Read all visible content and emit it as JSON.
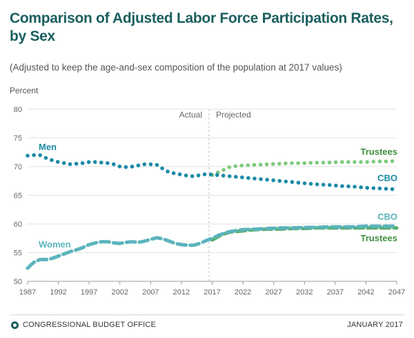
{
  "title": "Comparison of Adjusted Labor Force Participation Rates, by Sex",
  "subtitle": "(Adjusted to keep the age-and-sex composition of the population at 2017 values)",
  "footer": {
    "left": "CONGRESSIONAL BUDGET OFFICE",
    "right": "JANUARY 2017"
  },
  "colors": {
    "title": "#1b5e5e",
    "cbo_men": "#1a8aa6",
    "cbo_women": "#5bb4bd",
    "trustees_men": "#7fc97f",
    "trustees_women": "#5aaf68",
    "trustees_label": "#3f8f3f"
  },
  "chart_data": {
    "type": "line",
    "ylabel": "Percent",
    "ylim": [
      50,
      80
    ],
    "yticks": [
      50,
      55,
      60,
      65,
      70,
      75,
      80
    ],
    "xlim": [
      1987,
      2047
    ],
    "xticks": [
      1987,
      1992,
      1997,
      2002,
      2007,
      2012,
      2017,
      2022,
      2027,
      2032,
      2037,
      2042,
      2047
    ],
    "annotations": {
      "actual": "Actual",
      "projected": "Projected",
      "divider_year": 2016.5
    },
    "labels": {
      "men": "Men",
      "women": "Women",
      "cbo_men": "CBO",
      "trustees_men": "Trustees",
      "cbo_women": "CBO",
      "trustees_women": "Trustees"
    },
    "series": [
      {
        "name": "Men (CBO)",
        "style": "dotted",
        "color": "#1a8aa6",
        "x": [
          1987,
          1988,
          1989,
          1990,
          1991,
          1992,
          1993,
          1994,
          1995,
          1996,
          1997,
          1998,
          1999,
          2000,
          2001,
          2002,
          2003,
          2004,
          2005,
          2006,
          2007,
          2008,
          2009,
          2010,
          2011,
          2012,
          2013,
          2014,
          2015,
          2016,
          2017,
          2018,
          2019,
          2020,
          2022,
          2024,
          2026,
          2028,
          2030,
          2032,
          2034,
          2036,
          2038,
          2040,
          2042,
          2044,
          2046,
          2047
        ],
        "y": [
          71.9,
          72.0,
          72.0,
          71.5,
          71.1,
          70.8,
          70.6,
          70.4,
          70.5,
          70.6,
          70.8,
          70.8,
          70.7,
          70.6,
          70.4,
          70.0,
          69.9,
          70.0,
          70.2,
          70.4,
          70.4,
          70.3,
          69.6,
          69.0,
          68.8,
          68.6,
          68.4,
          68.3,
          68.5,
          68.7,
          68.6,
          68.5,
          68.4,
          68.3,
          68.1,
          67.9,
          67.7,
          67.5,
          67.3,
          67.1,
          66.9,
          66.8,
          66.6,
          66.5,
          66.3,
          66.2,
          66.1,
          66.0
        ]
      },
      {
        "name": "Men (Trustees)",
        "style": "dotted",
        "color": "#7fc97f",
        "x": [
          2017,
          2018,
          2019,
          2020,
          2022,
          2024,
          2026,
          2028,
          2030,
          2032,
          2034,
          2036,
          2038,
          2040,
          2042,
          2044,
          2046,
          2047
        ],
        "y": [
          68.5,
          69.0,
          69.5,
          70.0,
          70.2,
          70.3,
          70.4,
          70.5,
          70.6,
          70.6,
          70.7,
          70.7,
          70.8,
          70.8,
          70.8,
          70.9,
          70.9,
          71.0
        ]
      },
      {
        "name": "Women (CBO)",
        "style": "dashed",
        "color": "#5bb4bd",
        "x": [
          1987,
          1988,
          1989,
          1990,
          1991,
          1992,
          1993,
          1994,
          1995,
          1996,
          1997,
          1998,
          1999,
          2000,
          2001,
          2002,
          2003,
          2004,
          2005,
          2006,
          2007,
          2008,
          2009,
          2010,
          2011,
          2012,
          2013,
          2014,
          2015,
          2016,
          2017,
          2018,
          2019,
          2020,
          2022,
          2024,
          2026,
          2028,
          2030,
          2032,
          2034,
          2036,
          2038,
          2040,
          2042,
          2044,
          2046,
          2047
        ],
        "y": [
          52.3,
          53.3,
          53.8,
          53.8,
          54.0,
          54.4,
          54.8,
          55.2,
          55.5,
          55.9,
          56.4,
          56.7,
          56.9,
          56.9,
          56.7,
          56.6,
          56.8,
          56.9,
          56.8,
          57.0,
          57.3,
          57.6,
          57.4,
          57.0,
          56.6,
          56.4,
          56.3,
          56.3,
          56.6,
          57.1,
          57.5,
          58.0,
          58.4,
          58.7,
          59.0,
          59.1,
          59.2,
          59.3,
          59.3,
          59.4,
          59.4,
          59.5,
          59.5,
          59.5,
          59.6,
          59.6,
          59.6,
          59.6
        ]
      },
      {
        "name": "Women (Trustees)",
        "style": "dashed",
        "color": "#5aaf68",
        "x": [
          2017,
          2018,
          2019,
          2020,
          2022,
          2024,
          2026,
          2028,
          2030,
          2032,
          2034,
          2036,
          2038,
          2040,
          2042,
          2044,
          2046,
          2047
        ],
        "y": [
          57.2,
          57.8,
          58.3,
          58.6,
          58.8,
          59.0,
          59.1,
          59.1,
          59.2,
          59.2,
          59.3,
          59.3,
          59.3,
          59.3,
          59.3,
          59.3,
          59.3,
          59.3
        ]
      }
    ]
  }
}
